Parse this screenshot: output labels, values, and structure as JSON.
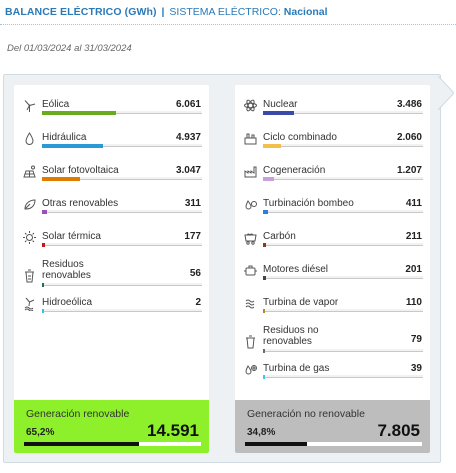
{
  "header": {
    "title": "BALANCE ELÉCTRICO (GWh)",
    "separator": "|",
    "system_label": "SISTEMA ELÉCTRICO:",
    "region": "Nacional"
  },
  "date_range": "Del 01/03/2024 al 31/03/2024",
  "renewable": {
    "items": [
      {
        "label": "Eólica",
        "value": "6.061",
        "share": 0.41,
        "color": "#6aaa1e",
        "icon": "wind-turbine-icon"
      },
      {
        "label": "Hidráulica",
        "value": "4.937",
        "share": 0.34,
        "color": "#2a9ad6",
        "icon": "water-drop-icon"
      },
      {
        "label": "Solar fotovoltaica",
        "value": "3.047",
        "share": 0.21,
        "color": "#e07b00",
        "icon": "solar-panel-icon"
      },
      {
        "label": "Otras renovables",
        "value": "311",
        "share": 0.03,
        "color": "#9a4fc0",
        "icon": "leaf-hand-icon"
      },
      {
        "label": "Solar térmica",
        "value": "177",
        "share": 0.015,
        "color": "#c4171c",
        "icon": "sun-icon"
      },
      {
        "label": "Residuos renovables",
        "value": "56",
        "share": 0.008,
        "color": "#1f6f4f",
        "icon": "recycle-bin-icon"
      },
      {
        "label": "Hidroeólica",
        "value": "2",
        "share": 0.006,
        "color": "#39c2e0",
        "icon": "hydro-wind-icon"
      }
    ],
    "summary": {
      "title": "Generación renovable",
      "percent": "65,2%",
      "total": "14.591",
      "share": 0.652,
      "bg": "#8ef02a"
    }
  },
  "nonrenewable": {
    "items": [
      {
        "label": "Nuclear",
        "value": "3.486",
        "share": 0.17,
        "color": "#3a4aa8",
        "icon": "atom-icon"
      },
      {
        "label": "Ciclo combinado",
        "value": "2.060",
        "share": 0.1,
        "color": "#f2c04a",
        "icon": "combined-cycle-icon"
      },
      {
        "label": "Cogeneración",
        "value": "1.207",
        "share": 0.06,
        "color": "#c9a0dc",
        "icon": "factory-icon"
      },
      {
        "label": "Turbinación bombeo",
        "value": "411",
        "share": 0.025,
        "color": "#2f7ed8",
        "icon": "pump-drop-icon"
      },
      {
        "label": "Carbón",
        "value": "211",
        "share": 0.015,
        "color": "#8a3a1e",
        "icon": "coal-wagon-icon"
      },
      {
        "label": "Motores diésel",
        "value": "201",
        "share": 0.014,
        "color": "#444444",
        "icon": "engine-icon"
      },
      {
        "label": "Turbina de vapor",
        "value": "110",
        "share": 0.01,
        "color": "#b08a2e",
        "icon": "steam-turbine-icon"
      },
      {
        "label": "Residuos no renovables",
        "value": "79",
        "share": 0.008,
        "color": "#6b6b6b",
        "icon": "trash-can-icon"
      },
      {
        "label": "Turbina de gas",
        "value": "39",
        "share": 0.006,
        "color": "#3fc8e8",
        "icon": "gas-turbine-icon"
      }
    ],
    "summary": {
      "title": "Generación no renovable",
      "percent": "34,8%",
      "total": "7.805",
      "share": 0.348,
      "bg": "#bdbdbd"
    }
  }
}
